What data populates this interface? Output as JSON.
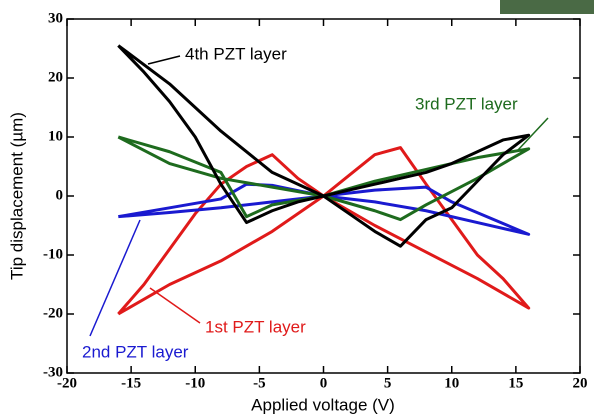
{
  "chart_data": {
    "type": "line",
    "xlabel": "Applied voltage (V)",
    "ylabel": "Tip displacement (µm)",
    "xlim": [
      -20,
      20
    ],
    "ylim": [
      -30,
      30
    ],
    "xticks": [
      -20,
      -15,
      -10,
      -5,
      0,
      5,
      10,
      15,
      20
    ],
    "yticks": [
      -30,
      -20,
      -10,
      0,
      10,
      20,
      30
    ],
    "series": [
      {
        "name": "1st PZT layer",
        "color": "#e01a1a",
        "x": [
          -16,
          -14,
          -12,
          -10,
          -8,
          -6,
          -4,
          -2,
          0,
          2,
          4,
          6,
          8,
          10,
          12,
          14,
          16,
          12,
          8,
          4,
          0,
          -4,
          -8,
          -12,
          -16
        ],
        "values": [
          -20,
          -15,
          -9,
          -3,
          2,
          5,
          7,
          3,
          0,
          3.5,
          7,
          8.2,
          2,
          -4,
          -10,
          -14,
          -19,
          -14,
          -9.5,
          -5,
          0,
          -6,
          -11,
          -15,
          -20
        ]
      },
      {
        "name": "2nd PZT layer",
        "color": "#1a1ad0",
        "x": [
          -16,
          -12,
          -8,
          -6,
          -4,
          0,
          4,
          8,
          12,
          16,
          10,
          8,
          4,
          0,
          -4,
          -8,
          -12,
          -16
        ],
        "values": [
          -3.5,
          -2,
          -0.5,
          2,
          1.8,
          0,
          -1,
          -2.5,
          -4.5,
          -6.5,
          -1,
          1.5,
          1,
          0,
          -1,
          -2,
          -2.8,
          -3.5
        ]
      },
      {
        "name": "3rd PZT layer",
        "color": "#1e6b1e",
        "x": [
          -16,
          -12,
          -8,
          -6,
          -4,
          0,
          4,
          8,
          12,
          16,
          12,
          8,
          6,
          4,
          0,
          -4,
          -8,
          -12,
          -16
        ],
        "values": [
          10,
          7.5,
          4,
          -3.5,
          -1.5,
          0,
          2.5,
          4.5,
          6.5,
          8,
          3,
          -1.5,
          -4,
          -2.5,
          0,
          1.5,
          3,
          5.5,
          10
        ]
      },
      {
        "name": "4th PZT layer",
        "color": "#000000",
        "x": [
          -16,
          -14,
          -12,
          -10,
          -8,
          -6,
          -4,
          -2,
          0,
          2,
          4,
          6,
          8,
          10,
          12,
          14,
          16,
          14,
          12,
          10,
          8,
          6,
          4,
          2,
          0,
          -4,
          -8,
          -12,
          -16
        ],
        "values": [
          25.5,
          21,
          16,
          10,
          2,
          -4.5,
          -2.5,
          -1,
          0,
          1,
          2,
          3,
          4,
          5.5,
          7.5,
          9.5,
          10.3,
          7,
          2.5,
          -2,
          -4,
          -8.5,
          -6,
          -3,
          0,
          4,
          11,
          19,
          25.5
        ]
      }
    ]
  }
}
